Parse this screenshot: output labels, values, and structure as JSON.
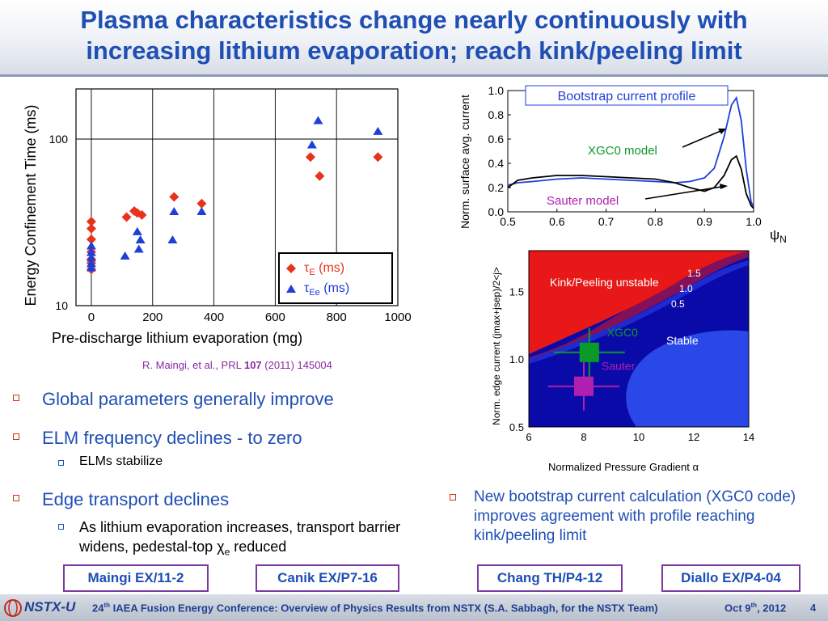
{
  "slide": {
    "title_line1": "Plasma characteristics change nearly continuously with",
    "title_line2": "increasing lithium evaporation; reach kink/peeling limit",
    "citation_pre": "R. Maingi, et al., PRL ",
    "citation_vol": "107",
    "citation_post": " (2011) 145004"
  },
  "bullets": {
    "b1": "Global parameters generally improve",
    "b2": "ELM frequency declines - to zero",
    "b2_sub": "ELMs stabilize",
    "b3": "Edge transport declines",
    "b3_sub": "As lithium evaporation increases, transport barrier widens, pedestal-top χ",
    "b3_sub_subscript": "e",
    "b3_sub_end": " reduced",
    "right": "New bootstrap current calculation (XGC0 code) improves agreement with profile reaching kink/peeling limit"
  },
  "refs": [
    "Maingi EX/11-2",
    "Canik EX/P7-16",
    "Chang TH/P4-12",
    "Diallo EX/P4-04"
  ],
  "footer": {
    "logo": "NSTX-U",
    "ord": "24",
    "ord_sup": "th",
    "text": " IAEA Fusion Energy Conference: Overview of Physics Results from NSTX (S.A. Sabbagh, for the NSTX Team)",
    "date": "Oct 9",
    "date_sup": "th",
    "date_end": ", 2012",
    "page": "4"
  },
  "colors": {
    "title_blue": "#1f4fb4",
    "red": "#e8331b",
    "blue": "#1f3fd8",
    "green": "#0a9a2a",
    "purple": "#b01fb0"
  },
  "chart_data": [
    {
      "type": "scatter",
      "xlabel": "Pre-discharge lithium evaporation (mg)",
      "ylabel": "Energy Confinement Time (ms)",
      "xlim": [
        -50,
        1000
      ],
      "ylim": [
        10,
        200
      ],
      "yscale": "log",
      "x_ticks": [
        "0",
        "200",
        "400",
        "600",
        "800",
        "1000"
      ],
      "y_ticks": [
        "10",
        "100"
      ],
      "grid": true,
      "legend": "bottom-right",
      "series": [
        {
          "name": "τE (ms)",
          "symbol": "diamond",
          "color": "#e8331b",
          "points": [
            [
              0,
              32
            ],
            [
              0,
              29
            ],
            [
              0,
              25
            ],
            [
              0,
              21
            ],
            [
              0,
              19
            ],
            [
              0,
              18
            ],
            [
              0,
              16.5
            ],
            [
              115,
              34
            ],
            [
              140,
              37
            ],
            [
              150,
              36
            ],
            [
              165,
              35
            ],
            [
              270,
              45
            ],
            [
              360,
              41
            ],
            [
              715,
              78
            ],
            [
              745,
              60
            ],
            [
              935,
              78
            ]
          ]
        },
        {
          "name": "τEe (ms)",
          "symbol": "triangle",
          "color": "#1f3fd8",
          "points": [
            [
              0,
              23
            ],
            [
              0,
              21
            ],
            [
              0,
              19.5
            ],
            [
              0,
              18
            ],
            [
              0,
              17
            ],
            [
              110,
              20
            ],
            [
              150,
              28
            ],
            [
              155,
              22
            ],
            [
              160,
              25
            ],
            [
              265,
              25
            ],
            [
              270,
              37
            ],
            [
              360,
              37
            ],
            [
              720,
              93
            ],
            [
              740,
              130
            ],
            [
              935,
              112
            ]
          ]
        }
      ]
    },
    {
      "type": "line",
      "title": "Bootstrap current profile",
      "xlabel": "ψN",
      "ylabel": "Norm. surface avg. current",
      "xlim": [
        0.5,
        1.0
      ],
      "ylim": [
        0.0,
        1.0
      ],
      "x_ticks": [
        "0.5",
        "0.6",
        "0.7",
        "0.8",
        "0.9",
        "1.0"
      ],
      "y_ticks": [
        "0.0",
        "0.2",
        "0.4",
        "0.6",
        "0.8",
        "1.0"
      ],
      "series": [
        {
          "name": "XGC0 model",
          "color": "#1f3fd8",
          "x": [
            0.5,
            0.52,
            0.55,
            0.6,
            0.65,
            0.7,
            0.75,
            0.8,
            0.84,
            0.87,
            0.9,
            0.92,
            0.94,
            0.955,
            0.965,
            0.975,
            0.985,
            0.995,
            1.0
          ],
          "y": [
            0.22,
            0.24,
            0.25,
            0.27,
            0.28,
            0.27,
            0.26,
            0.25,
            0.24,
            0.25,
            0.28,
            0.36,
            0.62,
            0.88,
            0.94,
            0.75,
            0.35,
            0.08,
            0.04
          ]
        },
        {
          "name": "Sauter model",
          "color": "#000000",
          "x": [
            0.5,
            0.52,
            0.55,
            0.6,
            0.65,
            0.7,
            0.75,
            0.8,
            0.84,
            0.87,
            0.9,
            0.92,
            0.94,
            0.955,
            0.965,
            0.975,
            0.985,
            0.995,
            1.0
          ],
          "y": [
            0.2,
            0.26,
            0.28,
            0.3,
            0.3,
            0.29,
            0.28,
            0.27,
            0.24,
            0.2,
            0.17,
            0.2,
            0.3,
            0.43,
            0.46,
            0.35,
            0.15,
            0.05,
            0.03
          ]
        }
      ],
      "annotations": [
        "XGC0 model",
        "Sauter model"
      ]
    },
    {
      "type": "heatmap",
      "xlabel": "Normalized Pressure Gradient α",
      "ylabel": "Norm. edge current (jmax+jsep)/2<j>",
      "xlim": [
        6,
        14
      ],
      "ylim": [
        0.5,
        1.8
      ],
      "x_ticks": [
        "6",
        "8",
        "10",
        "12",
        "14"
      ],
      "y_ticks": [
        "0.5",
        "1.0",
        "1.5"
      ],
      "regions": [
        "Kink/Peeling unstable",
        "Stable"
      ],
      "contour_labels": [
        "1.5",
        "1.0",
        "0.5"
      ],
      "points": [
        {
          "name": "XGC0",
          "x": 8.2,
          "y": 1.05,
          "color": "#0a9a2a"
        },
        {
          "name": "Sauter",
          "x": 8.0,
          "y": 0.8,
          "color": "#b01fb0"
        }
      ]
    }
  ]
}
